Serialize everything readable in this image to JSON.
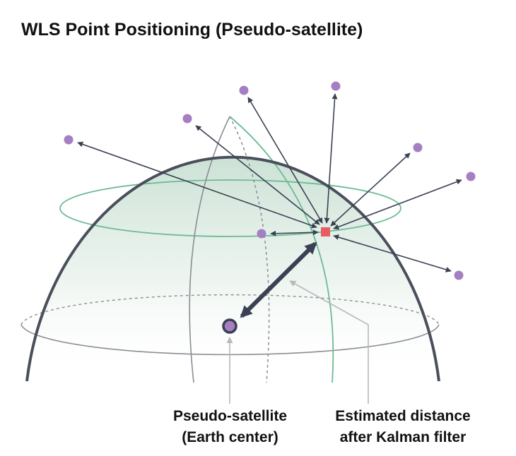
{
  "title": "WLS Point Positioning (Pseudo-satellite)",
  "labels": {
    "center_line1": "Pseudo-satellite",
    "center_line2": "(Earth center)",
    "distance_line1": "Estimated distance",
    "distance_line2": "after Kalman filter"
  },
  "colors": {
    "satellite": "#a57fc1",
    "receiver": "#e85c63",
    "dome_outline": "#4a4f5c",
    "latitude_line": "#6dbb95",
    "meridian": "#8a8d94",
    "arrow": "#3a4152",
    "leader": "#b8b8b8",
    "dome_fill_top": "#c9e0d3"
  },
  "icons": {
    "satellite": "purple-dot-icon",
    "receiver": "red-square-icon",
    "center": "ringed-dot-icon"
  }
}
